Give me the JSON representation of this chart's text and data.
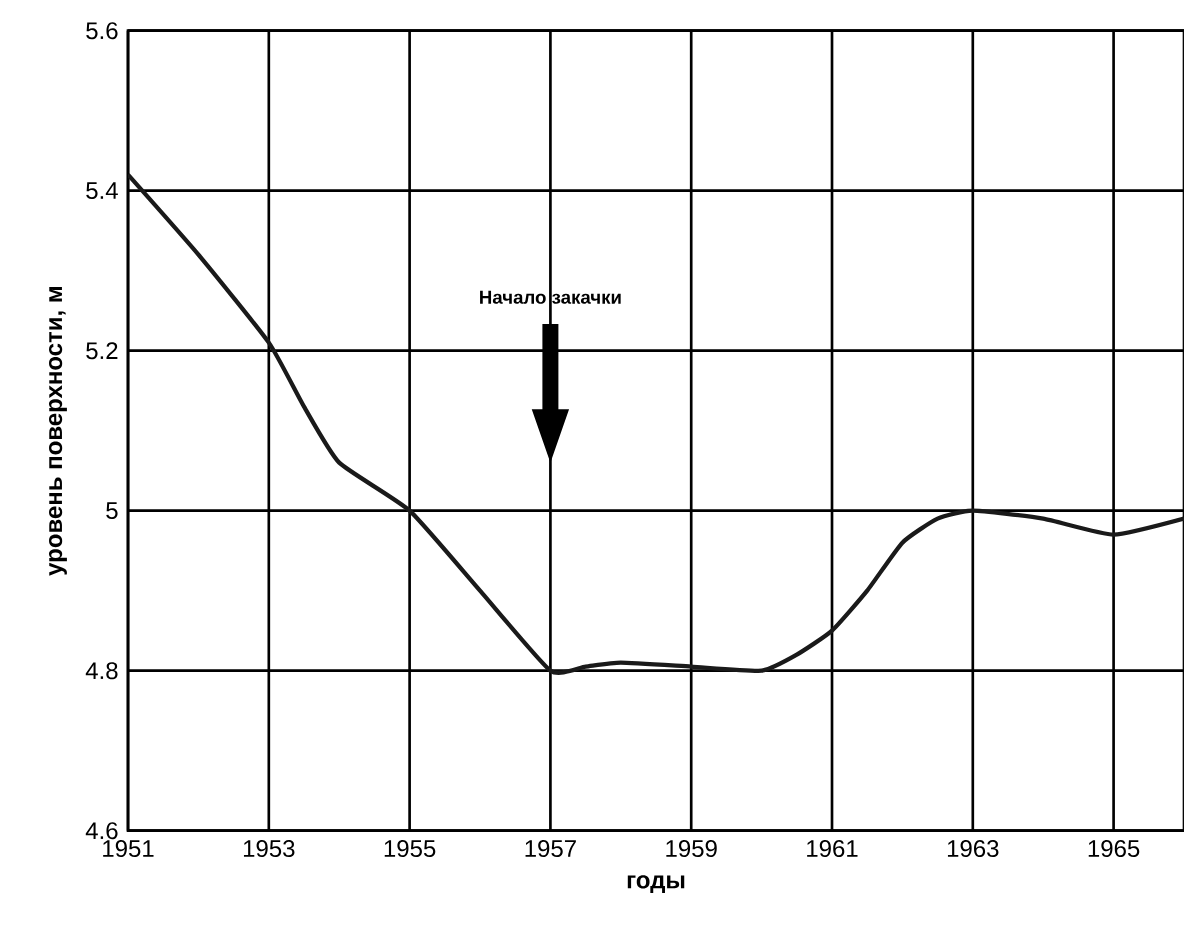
{
  "chart_data": {
    "type": "line",
    "xlabel": "годы",
    "ylabel": "уровень поверхности, м",
    "x": [
      1951,
      1952,
      1953,
      1953.5,
      1954,
      1955,
      1956,
      1957,
      1957.5,
      1958,
      1959,
      1960,
      1960.5,
      1961,
      1961.5,
      1962,
      1962.5,
      1963,
      1964,
      1965,
      1966
    ],
    "series": [
      {
        "color": "#1a1a1a",
        "values": [
          5.42,
          5.32,
          5.21,
          5.13,
          5.06,
          5.0,
          4.9,
          4.8,
          4.805,
          4.81,
          4.805,
          4.8,
          4.82,
          4.85,
          4.9,
          4.96,
          4.99,
          5.0,
          4.99,
          4.97,
          4.99
        ]
      }
    ],
    "xlim": [
      1951,
      1966
    ],
    "xticks": [
      1951,
      1953,
      1955,
      1957,
      1959,
      1961,
      1963,
      1965
    ],
    "ylim": [
      4.6,
      5.6
    ],
    "yticks": [
      4.6,
      4.8,
      5,
      5.2,
      5.4,
      5.6
    ],
    "grid": true,
    "marker": "none",
    "line_style": "solid",
    "annotations": [
      "Начало закачки"
    ]
  }
}
